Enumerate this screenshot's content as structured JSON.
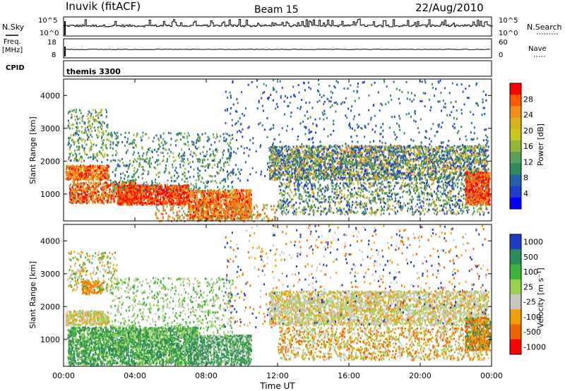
{
  "header": {
    "title": "Inuvik (fitACF)",
    "beam": "Beam 15",
    "date": "22/Aug/2010"
  },
  "summary_panels": {
    "nsky_label": "N.Sky",
    "nsearch_label": "N.Search",
    "freq_label": "Freq.",
    "freq_unit": "[MHz]",
    "nave_label": "Nave",
    "cpid_label": "CPID",
    "cpid_value": "themis 3300",
    "noise_ticks_left": [
      "10^5",
      "10^0"
    ],
    "noise_ticks_right": [
      "10^5",
      "10^0"
    ],
    "freq_ticks_left": [
      "18",
      "8"
    ],
    "nave_ticks_right": [
      "60",
      "0"
    ]
  },
  "chart_data": [
    {
      "type": "heatmap",
      "panel": "power",
      "ylabel": "Slant Range [km]",
      "colorbar_label": "Power [dB]",
      "colorbar_ticks": [
        "28",
        "24",
        "20",
        "16",
        "12",
        "8",
        "4"
      ],
      "colorbar_colors": [
        "#ff0000",
        "#ff5a00",
        "#f28c1c",
        "#d9b020",
        "#c8c81e",
        "#96b43c",
        "#5aa05a",
        "#2e8b57",
        "#285faa",
        "#1e3ccd",
        "#0000ff"
      ],
      "yticks": [
        "4000",
        "3000",
        "2000",
        "1000"
      ],
      "ylim": [
        180,
        4500
      ],
      "xlim": [
        0,
        24
      ]
    },
    {
      "type": "heatmap",
      "panel": "velocity",
      "ylabel": "Slant Range [km]",
      "colorbar_label": "Velocity [m s⁻¹]",
      "colorbar_ticks": [
        "1000",
        "500",
        "100",
        "25",
        "-25",
        "-100",
        "-500",
        "-1000"
      ],
      "colorbar_colors": [
        "#1e3cc8",
        "#2e8b57",
        "#3cb43c",
        "#96d24b",
        "#c8c8c0",
        "#f0a000",
        "#f06400",
        "#ff0000"
      ],
      "yticks": [
        "4000",
        "3000",
        "2000",
        "1000"
      ],
      "ylim": [
        180,
        4500
      ],
      "xlim": [
        0,
        24
      ]
    }
  ],
  "xaxis": {
    "ticks": [
      "00:00",
      "04:00",
      "08:00",
      "12:00",
      "16:00",
      "20:00",
      "00:00"
    ],
    "label": "Time UT"
  }
}
